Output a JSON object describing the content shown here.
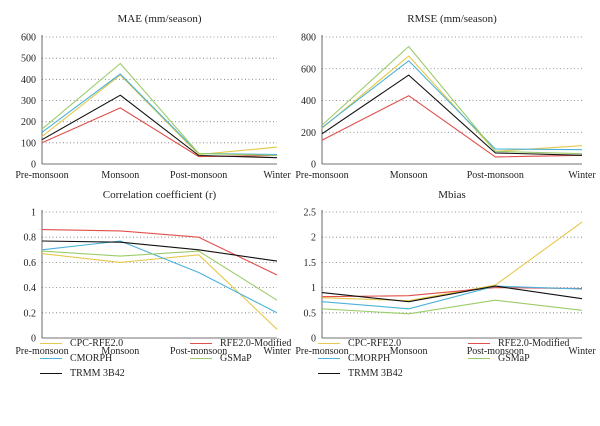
{
  "categories": [
    "Pre-monsoon",
    "Monsoon",
    "Post-monsoon",
    "Winter"
  ],
  "colors": {
    "CPC-RFE2.0": "#e6c84a",
    "RFE2.0-Modified": "#e0504c",
    "CMORPH": "#4bb3d9",
    "GSMaP": "#9ccc6a",
    "TRMM 3B42": "#111111"
  },
  "legends": [
    {
      "entries": [
        "CPC-RFE2.0",
        "RFE2.0-Modified",
        "CMORPH",
        "GSMaP",
        "TRMM 3B42"
      ]
    },
    {
      "entries": [
        "CPC-RFE2.0",
        "RFE2.0-Modified",
        "CMORPH",
        "GSMaP",
        "TRMM 3B42"
      ]
    }
  ],
  "chart_data": [
    {
      "type": "line",
      "title": "MAE (mm/season)",
      "categories": [
        "Pre-monsoon",
        "Monsoon",
        "Post-monsoon",
        "Winter"
      ],
      "ylim": [
        0,
        600
      ],
      "yticks": [
        "0",
        "100",
        "200",
        "300",
        "400",
        "500",
        "600"
      ],
      "grid": true,
      "series": [
        {
          "name": "CPC-RFE2.0",
          "values": [
            130,
            420,
            45,
            80
          ]
        },
        {
          "name": "RFE2.0-Modified",
          "values": [
            100,
            265,
            35,
            40
          ]
        },
        {
          "name": "CMORPH",
          "values": [
            150,
            425,
            50,
            45
          ]
        },
        {
          "name": "GSMaP",
          "values": [
            165,
            475,
            50,
            40
          ]
        },
        {
          "name": "TRMM 3B42",
          "values": [
            115,
            325,
            40,
            30
          ]
        }
      ]
    },
    {
      "type": "line",
      "title": "RMSE (mm/season)",
      "categories": [
        "Pre-monsoon",
        "Monsoon",
        "Post-monsoon",
        "Winter"
      ],
      "ylim": [
        0,
        800
      ],
      "yticks": [
        "0",
        "200",
        "400",
        "600",
        "800"
      ],
      "grid": true,
      "series": [
        {
          "name": "CPC-RFE2.0",
          "values": [
            225,
            680,
            80,
            115
          ]
        },
        {
          "name": "RFE2.0-Modified",
          "values": [
            150,
            430,
            45,
            55
          ]
        },
        {
          "name": "CMORPH",
          "values": [
            230,
            650,
            95,
            90
          ]
        },
        {
          "name": "GSMaP",
          "values": [
            245,
            740,
            80,
            65
          ]
        },
        {
          "name": "TRMM 3B42",
          "values": [
            190,
            560,
            70,
            55
          ]
        }
      ]
    },
    {
      "type": "line",
      "title": "Correlation coefficient (r)",
      "categories": [
        "Pre-monsoon",
        "Monsoon",
        "Post-monsoon",
        "Winter"
      ],
      "ylim": [
        0,
        1
      ],
      "yticks": [
        "0",
        "0.2",
        "0.4",
        "0.6",
        "0.8",
        "1"
      ],
      "grid": true,
      "series": [
        {
          "name": "CPC-RFE2.0",
          "values": [
            0.67,
            0.6,
            0.66,
            0.07
          ]
        },
        {
          "name": "RFE2.0-Modified",
          "values": [
            0.86,
            0.85,
            0.8,
            0.5
          ]
        },
        {
          "name": "CMORPH",
          "values": [
            0.7,
            0.77,
            0.52,
            0.2
          ]
        },
        {
          "name": "GSMaP",
          "values": [
            0.69,
            0.65,
            0.69,
            0.3
          ]
        },
        {
          "name": "TRMM 3B42",
          "values": [
            0.77,
            0.76,
            0.7,
            0.61
          ]
        }
      ]
    },
    {
      "type": "line",
      "title": "Mbias",
      "categories": [
        "Pre-monsoon",
        "Monsoon",
        "Post-monsoon",
        "Winter"
      ],
      "ylim": [
        0,
        2.5
      ],
      "yticks": [
        "0",
        "0.5",
        "1",
        "1.5",
        "2",
        "2.5"
      ],
      "grid": true,
      "series": [
        {
          "name": "CPC-RFE2.0",
          "values": [
            0.8,
            0.74,
            1.05,
            2.3
          ]
        },
        {
          "name": "RFE2.0-Modified",
          "values": [
            0.82,
            0.84,
            1.0,
            0.98
          ]
        },
        {
          "name": "CMORPH",
          "values": [
            0.72,
            0.58,
            1.03,
            0.97
          ]
        },
        {
          "name": "GSMaP",
          "values": [
            0.58,
            0.48,
            0.75,
            0.55
          ]
        },
        {
          "name": "TRMM 3B42",
          "values": [
            0.9,
            0.72,
            1.03,
            0.78
          ]
        }
      ]
    }
  ]
}
